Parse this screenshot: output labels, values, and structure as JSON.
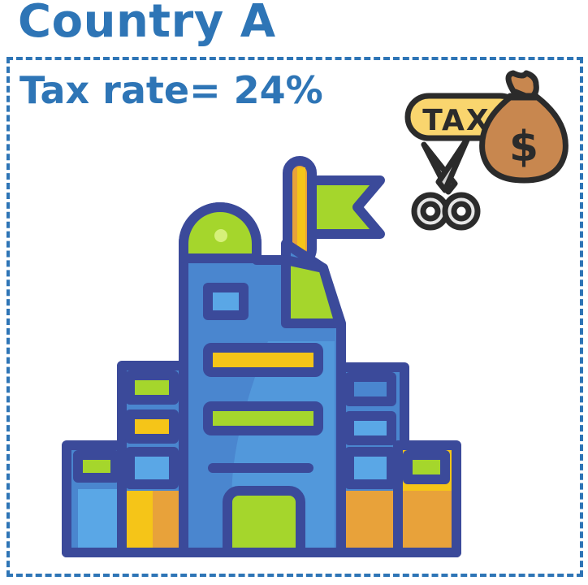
{
  "header": {
    "title": "Country A"
  },
  "panel": {
    "tax_rate_label": "Tax rate= 24%"
  },
  "tax_icon": {
    "text": "TAX",
    "symbol": "$"
  },
  "colors": {
    "accent_blue": "#2e75b6",
    "outline": "#3b4a9a",
    "building_blue": "#4a86cf",
    "building_light": "#5aa7e6",
    "green": "#a5d62c",
    "yellow": "#f5c518",
    "orange": "#e8a23a",
    "bag_brown": "#c8874f",
    "tag_yellow": "#f9d56e"
  },
  "icons": [
    "building-icon",
    "flag-icon",
    "tax-cut-icon",
    "scissors-icon",
    "money-bag-icon"
  ]
}
